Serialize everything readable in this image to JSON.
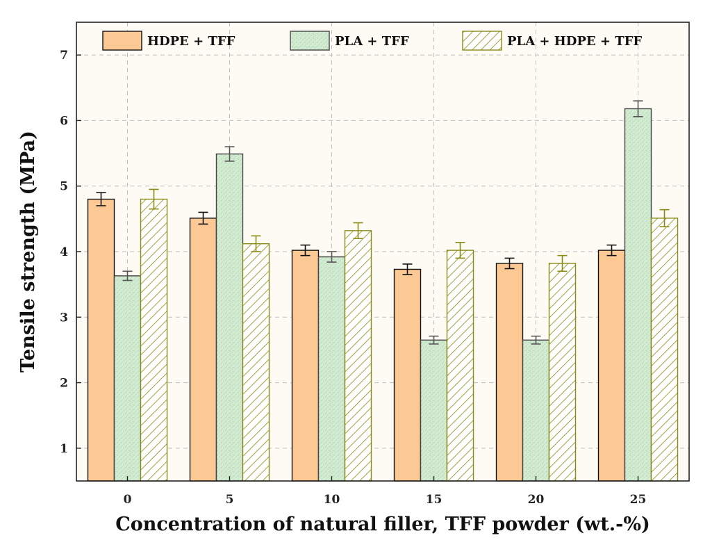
{
  "chart_data": {
    "type": "bar",
    "title": "",
    "xlabel": "Concentration of natural filler, TFF powder (wt.-%)",
    "ylabel": "Tensile strength (MPa)",
    "categories": [
      "0",
      "5",
      "10",
      "15",
      "20",
      "25"
    ],
    "ylim": [
      0.5,
      7.5
    ],
    "yticks": [
      "1",
      "2",
      "3",
      "4",
      "5",
      "6",
      "7"
    ],
    "grid": true,
    "legend_position": "top",
    "series": [
      {
        "name": "HDPE + TFF",
        "values": [
          4.8,
          4.51,
          4.02,
          3.73,
          3.82,
          4.02
        ],
        "errors": [
          0.1,
          0.09,
          0.08,
          0.08,
          0.08,
          0.08
        ],
        "fill": "#FCC995",
        "stroke": "#111111",
        "pattern": "solid"
      },
      {
        "name": "PLA + TFF",
        "values": [
          3.63,
          5.49,
          3.92,
          2.65,
          2.65,
          6.18
        ],
        "errors": [
          0.07,
          0.11,
          0.08,
          0.06,
          0.06,
          0.12
        ],
        "fill": "#D3EDD3",
        "stroke": "#444444",
        "pattern": "dots"
      },
      {
        "name": "PLA + HDPE + TFF",
        "values": [
          4.8,
          4.12,
          4.32,
          4.02,
          3.82,
          4.51
        ],
        "errors": [
          0.15,
          0.12,
          0.12,
          0.12,
          0.12,
          0.13
        ],
        "fill": "#FFFFFF",
        "stroke": "#8A8A16",
        "pattern": "hatch"
      }
    ],
    "background": "#FDFBF3"
  }
}
